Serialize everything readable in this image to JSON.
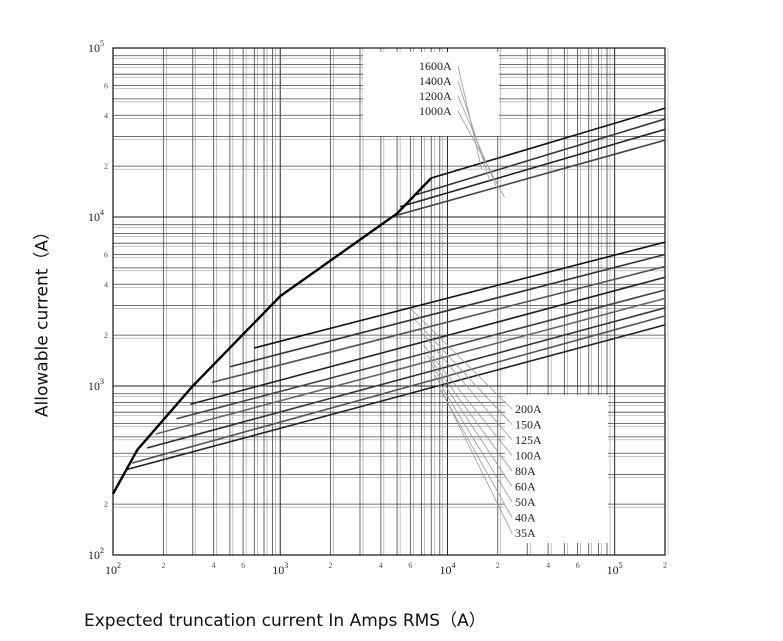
{
  "chart_data": {
    "type": "line",
    "title": "",
    "xlabel": "Expected truncation current In Amps RMS（A）",
    "ylabel": "Allowable current（A）",
    "x_scale": "log",
    "y_scale": "log",
    "xlim": [
      100,
      200000
    ],
    "ylim": [
      100,
      100000
    ],
    "grid": true,
    "x_major_ticks": [
      {
        "value": 100,
        "base": "10",
        "exp": "2"
      },
      {
        "value": 1000,
        "base": "10",
        "exp": "3"
      },
      {
        "value": 10000,
        "base": "10",
        "exp": "4"
      },
      {
        "value": 100000,
        "base": "10",
        "exp": "5"
      }
    ],
    "x_minor_ticks": [
      {
        "value": 200,
        "label": "2"
      },
      {
        "value": 400,
        "label": "4"
      },
      {
        "value": 600,
        "label": "6"
      },
      {
        "value": 2000,
        "label": "2"
      },
      {
        "value": 4000,
        "label": "4"
      },
      {
        "value": 6000,
        "label": "6"
      },
      {
        "value": 20000,
        "label": "2"
      },
      {
        "value": 40000,
        "label": "4"
      },
      {
        "value": 60000,
        "label": "6"
      },
      {
        "value": 200000,
        "label": "2"
      }
    ],
    "y_major_ticks": [
      {
        "value": 100,
        "base": "10",
        "exp": "2"
      },
      {
        "value": 1000,
        "base": "10",
        "exp": "3"
      },
      {
        "value": 10000,
        "base": "10",
        "exp": "4"
      },
      {
        "value": 100000,
        "base": "10",
        "exp": "5"
      }
    ],
    "y_minor_ticks": [
      {
        "value": 200,
        "label": "2"
      },
      {
        "value": 2000,
        "label": "2"
      },
      {
        "value": 4000,
        "label": "4"
      },
      {
        "value": 6000,
        "label": "6"
      },
      {
        "value": 20000,
        "label": "2"
      },
      {
        "value": 40000,
        "label": "4"
      },
      {
        "value": 60000,
        "label": "6"
      }
    ],
    "envelope": [
      [
        100,
        230
      ],
      [
        140,
        420
      ],
      [
        300,
        1000
      ],
      [
        1000,
        3400
      ],
      [
        5000,
        10500
      ],
      [
        8000,
        17000
      ]
    ],
    "series": [
      {
        "name": "1600A",
        "values": [
          [
            8000,
            17000
          ],
          [
            200000,
            44000
          ]
        ]
      },
      {
        "name": "1400A",
        "values": [
          [
            6400,
            13500
          ],
          [
            200000,
            38000
          ]
        ]
      },
      {
        "name": "1200A",
        "values": [
          [
            5200,
            11500
          ],
          [
            200000,
            33000
          ]
        ]
      },
      {
        "name": "1000A",
        "values": [
          [
            4900,
            10200
          ],
          [
            200000,
            28500
          ]
        ]
      },
      {
        "name": "200A",
        "values": [
          [
            700,
            1680
          ],
          [
            200000,
            7100
          ]
        ]
      },
      {
        "name": "150A",
        "values": [
          [
            500,
            1300
          ],
          [
            200000,
            6000
          ]
        ]
      },
      {
        "name": "125A",
        "values": [
          [
            390,
            1050
          ],
          [
            200000,
            5100
          ]
        ]
      },
      {
        "name": "100A",
        "values": [
          [
            290,
            780
          ],
          [
            200000,
            4400
          ]
        ]
      },
      {
        "name": "80A",
        "values": [
          [
            240,
            640
          ],
          [
            200000,
            3700
          ]
        ]
      },
      {
        "name": "60A",
        "values": [
          [
            180,
            520
          ],
          [
            200000,
            3300
          ]
        ]
      },
      {
        "name": "50A",
        "values": [
          [
            160,
            430
          ],
          [
            200000,
            2900
          ]
        ]
      },
      {
        "name": "40A",
        "values": [
          [
            130,
            350
          ],
          [
            200000,
            2600
          ]
        ]
      },
      {
        "name": "35A",
        "values": [
          [
            120,
            320
          ],
          [
            200000,
            2300
          ]
        ]
      }
    ]
  }
}
